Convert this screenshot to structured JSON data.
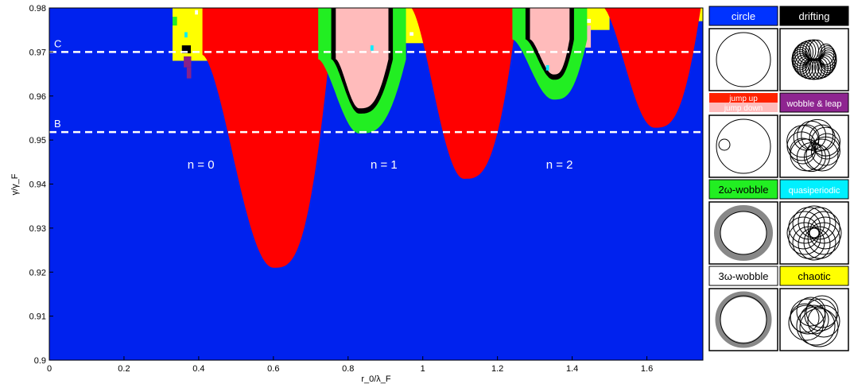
{
  "chart_data": {
    "type": "heatmap",
    "title": "",
    "xlabel": "r_0/λ_F",
    "ylabel": "γ/γ_F",
    "xlim": [
      0,
      1.75
    ],
    "ylim": [
      0.9,
      0.98
    ],
    "xticks": [
      0,
      0.2,
      0.4,
      0.6,
      0.8,
      1,
      1.2,
      1.4,
      1.6
    ],
    "xtick_labels": [
      "0",
      "0.2",
      "0.4",
      "0.6",
      "0.8",
      "1",
      "1.2",
      "1.4",
      "1.6"
    ],
    "yticks": [
      0.9,
      0.91,
      0.92,
      0.93,
      0.94,
      0.95,
      0.96,
      0.97,
      0.98
    ],
    "ytick_labels": [
      "0.9",
      "0.91",
      "0.92",
      "0.93",
      "0.94",
      "0.95",
      "0.96",
      "0.97",
      "0.98"
    ],
    "reference_lines": [
      {
        "label": "C",
        "y": 0.97
      },
      {
        "label": "B",
        "y": 0.9518
      }
    ],
    "mode_labels": [
      {
        "text": "n = 0",
        "x": 0.37,
        "y": 0.9435
      },
      {
        "text": "n = 1",
        "x": 0.86,
        "y": 0.9435
      },
      {
        "text": "n = 2",
        "x": 1.33,
        "y": 0.9435
      }
    ],
    "regions": [
      {
        "name": "circle",
        "color": "#0022ee",
        "role": "background"
      },
      {
        "name": "jump up",
        "color": "#ff0000",
        "valleys": [
          {
            "x_left": 0.41,
            "x_right": 0.75,
            "center": 0.6,
            "y_min": 0.921,
            "y_top": 0.969
          },
          {
            "x_left": 0.965,
            "x_right": 1.255,
            "center": 1.11,
            "y_min": 0.9412,
            "y_top": 0.98
          },
          {
            "x_left": 1.48,
            "x_right": 1.745,
            "center": 1.62,
            "y_min": 0.9528,
            "y_top": 0.98
          }
        ]
      },
      {
        "name": "2ω-wobble",
        "color": "#22ee22",
        "valleys": [
          {
            "x_left": 0.72,
            "x_right": 0.955,
            "center": 0.83,
            "y_min": 0.9515,
            "y_top": 0.968
          },
          {
            "x_left": 1.24,
            "x_right": 1.44,
            "center": 1.35,
            "y_min": 0.9592,
            "y_top": 0.9725
          }
        ]
      },
      {
        "name": "drifting",
        "color": "#000000"
      },
      {
        "name": "jump down",
        "color": "#ffbbbb"
      },
      {
        "name": "wobble & leap",
        "color": "#882288"
      },
      {
        "name": "quasiperiodic",
        "color": "#00eeff"
      },
      {
        "name": "3ω-wobble",
        "color": "#ffffff"
      },
      {
        "name": "chaotic",
        "color": "#ffff00"
      }
    ]
  },
  "legend": {
    "panels": [
      {
        "label": "circle",
        "color": "#0033ff",
        "text_color": "#ffffff",
        "trajectory": "circle"
      },
      {
        "label": "drifting",
        "color": "#000000",
        "text_color": "#ffffff",
        "trajectory": "drifting"
      },
      {
        "label": "jump up",
        "label2": "jump down",
        "color": "#ff2200",
        "color2": "#ffbbbb",
        "text_color": "#ffffff",
        "trajectory": "jump"
      },
      {
        "label": "wobble & leap",
        "color": "#8e2590",
        "text_color": "#ffffff",
        "trajectory": "wobble-leap"
      },
      {
        "label": "2ω-wobble",
        "color": "#22ee22",
        "text_color": "#000000",
        "trajectory": "wobble2"
      },
      {
        "label": "quasiperiodic",
        "color": "#00f0ff",
        "text_color": "#ffffff",
        "trajectory": "quasi"
      },
      {
        "label": "3ω-wobble",
        "color": "#ffffff",
        "text_color": "#000000",
        "trajectory": "wobble3"
      },
      {
        "label": "chaotic",
        "color": "#ffff00",
        "text_color": "#000000",
        "trajectory": "chaotic"
      }
    ]
  }
}
